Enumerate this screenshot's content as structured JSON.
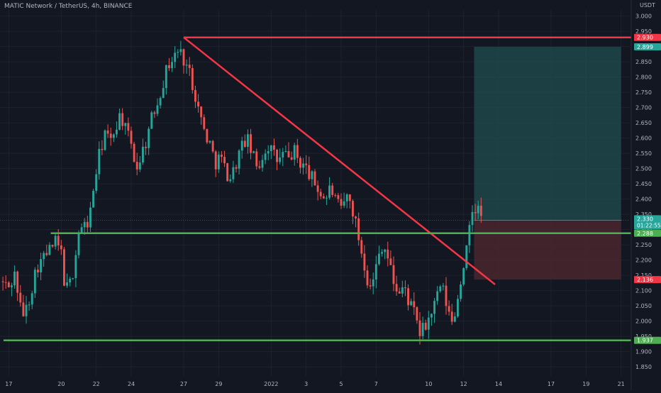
{
  "chart_data": {
    "type": "candlestick",
    "title": "MATIC Network / TetherUS, 4h, BINANCE",
    "price_unit": "USDT",
    "ylim": [
      1.82,
      3.02
    ],
    "y_ticks": [
      "3.000",
      "2.950",
      "2.900",
      "2.850",
      "2.800",
      "2.750",
      "2.700",
      "2.650",
      "2.600",
      "2.550",
      "2.500",
      "2.450",
      "2.400",
      "2.350",
      "2.300",
      "2.250",
      "2.200",
      "2.150",
      "2.100",
      "2.050",
      "2.000",
      "1.950",
      "1.900",
      "1.850"
    ],
    "x_ticks": [
      {
        "label": "17",
        "day": 0
      },
      {
        "label": "20",
        "day": 3
      },
      {
        "label": "22",
        "day": 5
      },
      {
        "label": "24",
        "day": 7
      },
      {
        "label": "27",
        "day": 10
      },
      {
        "label": "29",
        "day": 12
      },
      {
        "label": "2022",
        "day": 15
      },
      {
        "label": "3",
        "day": 17
      },
      {
        "label": "5",
        "day": 19
      },
      {
        "label": "7",
        "day": 21
      },
      {
        "label": "10",
        "day": 24
      },
      {
        "label": "12",
        "day": 26
      },
      {
        "label": "14",
        "day": 28
      },
      {
        "label": "17",
        "day": 31
      },
      {
        "label": "19",
        "day": 33
      },
      {
        "label": "21",
        "day": 35
      }
    ],
    "x_range_days": [
      -0.5,
      35.5
    ],
    "anchors": [
      {
        "day": -0.5,
        "price": 2.13
      },
      {
        "day": 0.0,
        "price": 2.11
      },
      {
        "day": 0.4,
        "price": 2.16
      },
      {
        "day": 0.6,
        "price": 2.05
      },
      {
        "day": 0.9,
        "price": 2.02
      },
      {
        "day": 1.2,
        "price": 2.08
      },
      {
        "day": 1.6,
        "price": 2.18
      },
      {
        "day": 1.9,
        "price": 2.2
      },
      {
        "day": 2.3,
        "price": 2.23
      },
      {
        "day": 2.7,
        "price": 2.26
      },
      {
        "day": 3.0,
        "price": 2.22
      },
      {
        "day": 3.2,
        "price": 2.12
      },
      {
        "day": 3.4,
        "price": 2.1
      },
      {
        "day": 3.7,
        "price": 2.17
      },
      {
        "day": 4.0,
        "price": 2.29
      },
      {
        "day": 4.3,
        "price": 2.31
      },
      {
        "day": 4.6,
        "price": 2.33
      },
      {
        "day": 4.9,
        "price": 2.46
      },
      {
        "day": 5.2,
        "price": 2.55
      },
      {
        "day": 5.5,
        "price": 2.62
      },
      {
        "day": 5.8,
        "price": 2.58
      },
      {
        "day": 6.1,
        "price": 2.64
      },
      {
        "day": 6.4,
        "price": 2.68
      },
      {
        "day": 6.7,
        "price": 2.62
      },
      {
        "day": 7.0,
        "price": 2.58
      },
      {
        "day": 7.3,
        "price": 2.5
      },
      {
        "day": 7.6,
        "price": 2.55
      },
      {
        "day": 7.9,
        "price": 2.6
      },
      {
        "day": 8.2,
        "price": 2.67
      },
      {
        "day": 8.5,
        "price": 2.72
      },
      {
        "day": 8.8,
        "price": 2.78
      },
      {
        "day": 9.1,
        "price": 2.84
      },
      {
        "day": 9.4,
        "price": 2.86
      },
      {
        "day": 9.7,
        "price": 2.89
      },
      {
        "day": 10.0,
        "price": 2.86
      },
      {
        "day": 10.3,
        "price": 2.82
      },
      {
        "day": 10.6,
        "price": 2.76
      },
      {
        "day": 10.9,
        "price": 2.68
      },
      {
        "day": 11.2,
        "price": 2.62
      },
      {
        "day": 11.5,
        "price": 2.58
      },
      {
        "day": 11.8,
        "price": 2.52
      },
      {
        "day": 12.1,
        "price": 2.54
      },
      {
        "day": 12.4,
        "price": 2.49
      },
      {
        "day": 12.7,
        "price": 2.47
      },
      {
        "day": 13.0,
        "price": 2.52
      },
      {
        "day": 13.3,
        "price": 2.57
      },
      {
        "day": 13.6,
        "price": 2.6
      },
      {
        "day": 13.9,
        "price": 2.55
      },
      {
        "day": 14.2,
        "price": 2.5
      },
      {
        "day": 14.5,
        "price": 2.54
      },
      {
        "day": 14.8,
        "price": 2.58
      },
      {
        "day": 15.1,
        "price": 2.55
      },
      {
        "day": 15.4,
        "price": 2.52
      },
      {
        "day": 15.7,
        "price": 2.55
      },
      {
        "day": 16.0,
        "price": 2.53
      },
      {
        "day": 16.3,
        "price": 2.56
      },
      {
        "day": 16.6,
        "price": 2.52
      },
      {
        "day": 16.9,
        "price": 2.51
      },
      {
        "day": 17.2,
        "price": 2.48
      },
      {
        "day": 17.5,
        "price": 2.45
      },
      {
        "day": 17.8,
        "price": 2.42
      },
      {
        "day": 18.1,
        "price": 2.4
      },
      {
        "day": 18.4,
        "price": 2.44
      },
      {
        "day": 18.7,
        "price": 2.39
      },
      {
        "day": 19.0,
        "price": 2.36
      },
      {
        "day": 19.3,
        "price": 2.41
      },
      {
        "day": 19.6,
        "price": 2.38
      },
      {
        "day": 19.9,
        "price": 2.3
      },
      {
        "day": 20.2,
        "price": 2.22
      },
      {
        "day": 20.5,
        "price": 2.14
      },
      {
        "day": 20.8,
        "price": 2.12
      },
      {
        "day": 21.1,
        "price": 2.21
      },
      {
        "day": 21.4,
        "price": 2.26
      },
      {
        "day": 21.7,
        "price": 2.2
      },
      {
        "day": 22.0,
        "price": 2.13
      },
      {
        "day": 22.3,
        "price": 2.09
      },
      {
        "day": 22.6,
        "price": 2.11
      },
      {
        "day": 22.9,
        "price": 2.06
      },
      {
        "day": 23.2,
        "price": 2.02
      },
      {
        "day": 23.5,
        "price": 1.96
      },
      {
        "day": 23.8,
        "price": 1.98
      },
      {
        "day": 24.1,
        "price": 2.02
      },
      {
        "day": 24.4,
        "price": 2.06
      },
      {
        "day": 24.7,
        "price": 2.12
      },
      {
        "day": 25.0,
        "price": 2.06
      },
      {
        "day": 25.3,
        "price": 1.99
      },
      {
        "day": 25.6,
        "price": 2.05
      },
      {
        "day": 25.9,
        "price": 2.16
      },
      {
        "day": 26.2,
        "price": 2.24
      },
      {
        "day": 26.5,
        "price": 2.36
      },
      {
        "day": 26.8,
        "price": 2.37
      },
      {
        "day": 27.1,
        "price": 2.33
      }
    ],
    "annotations": {
      "resistance_line": {
        "price": 2.93,
        "from_day": 10.0,
        "label": "2.930",
        "color": "#f23645"
      },
      "trend_line": {
        "from": {
          "day": 10.0,
          "price": 2.93
        },
        "to": {
          "day": 27.8,
          "price": 2.12
        },
        "color": "#f23645"
      },
      "support_line_upper": {
        "price": 2.288,
        "from_day": 2.4,
        "label": "2.288",
        "color": "#4caf50"
      },
      "support_line_lower": {
        "price": 1.937,
        "from_day": -0.3,
        "label": "1.937",
        "color": "#4caf50"
      },
      "position": {
        "entry": 2.33,
        "target": 2.899,
        "stop": 2.136,
        "from_day": 26.6,
        "to_day": 35.0,
        "profit_color": "#1f4e4f",
        "loss_color": "#4e2730"
      }
    },
    "price_labels": [
      {
        "text": "2.930",
        "price": 2.93,
        "bg": "#f23645"
      },
      {
        "text": "2.899",
        "price": 2.899,
        "bg": "#26a69a"
      },
      {
        "text": "2.330",
        "price": 2.333,
        "bg": "#26a69a",
        "sub": "01:22:55"
      },
      {
        "text": "2.288",
        "price": 2.288,
        "bg": "#4caf50"
      },
      {
        "text": "2.136",
        "price": 2.136,
        "bg": "#f23645"
      },
      {
        "text": "1.937",
        "price": 1.937,
        "bg": "#4caf50"
      }
    ],
    "colors": {
      "up": "#26a69a",
      "down": "#ef5350",
      "up_bright": "#4caf50",
      "bg": "#131722",
      "grid": "#1e222d",
      "text": "#b2b5be"
    }
  }
}
